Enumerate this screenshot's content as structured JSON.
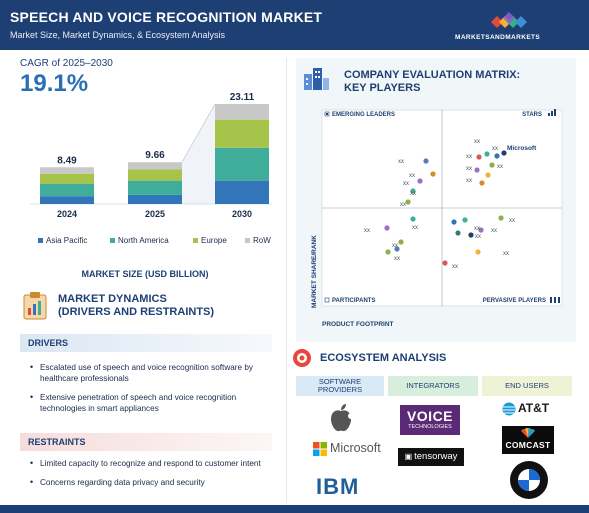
{
  "header": {
    "title": "SPEECH AND VOICE RECOGNITION MARKET",
    "subtitle": "Market Size, Market Dynamics, & Ecosystem Analysis",
    "brand": "MARKETSANDMARKETS",
    "brand_mark": "TM"
  },
  "cagr": {
    "label": "CAGR of 2025–2030",
    "value": "19.1%"
  },
  "chart_data": {
    "type": "bar",
    "stacked": true,
    "categories": [
      "2024",
      "2025",
      "2030"
    ],
    "totals": [
      "8.49",
      "9.66",
      "23.11"
    ],
    "xlabel": "MARKET SIZE (USD BILLION)",
    "series": [
      {
        "name": "Asia Pacific",
        "color": "#3275b8",
        "values": [
          1.8,
          2.1,
          5.4
        ]
      },
      {
        "name": "North America",
        "color": "#3fad9a",
        "values": [
          2.9,
          3.3,
          7.6
        ]
      },
      {
        "name": "Europe",
        "color": "#a7c44a",
        "values": [
          2.3,
          2.6,
          6.5
        ]
      },
      {
        "name": "RoW",
        "color": "#c8c8c8",
        "values": [
          1.49,
          1.66,
          3.61
        ]
      }
    ],
    "ylim": [
      0,
      25
    ],
    "legend_position": "bottom"
  },
  "dynamics": {
    "title_line1": "MARKET DYNAMICS",
    "title_line2": "(DRIVERS AND RESTRAINTS)",
    "drivers_label": "DRIVERS",
    "drivers": [
      "Escalated use of speech and voice recognition software by healthcare professionals",
      "Extensive penetration of speech and voice recognition technologies in smart appliances"
    ],
    "restraints_label": "RESTRAINTS",
    "restraints": [
      "Limited capacity to recognize and respond to customer intent",
      "Concerns regarding data privacy and security"
    ]
  },
  "matrix": {
    "title_line1": "COMPANY EVALUATION MATRIX:",
    "title_line2": "KEY PLAYERS",
    "q_emerging": "EMERGING LEADERS",
    "q_stars": "STARS",
    "q_participants": "PARTICIPANTS",
    "q_pervasive": "PERVASIVE PLAYERS",
    "y_axis": "MARKET SHARE/RANK",
    "x_axis": "PRODUCT FOOTPRINT",
    "highlight_label": "Microsoft",
    "anon_label": "xx"
  },
  "ecosystem": {
    "title": "ECOSYSTEM ANALYSIS",
    "col1": "SOFTWARE PROVIDERS",
    "col2": "INTEGRATORS",
    "col3": "END USERS",
    "software_providers": [
      "Apple",
      "Microsoft",
      "IBM"
    ],
    "integrators": [
      "VOICE TECHNOLOGIES",
      "tensorway"
    ],
    "end_users": [
      "AT&T",
      "COMCAST",
      "BMW"
    ]
  }
}
